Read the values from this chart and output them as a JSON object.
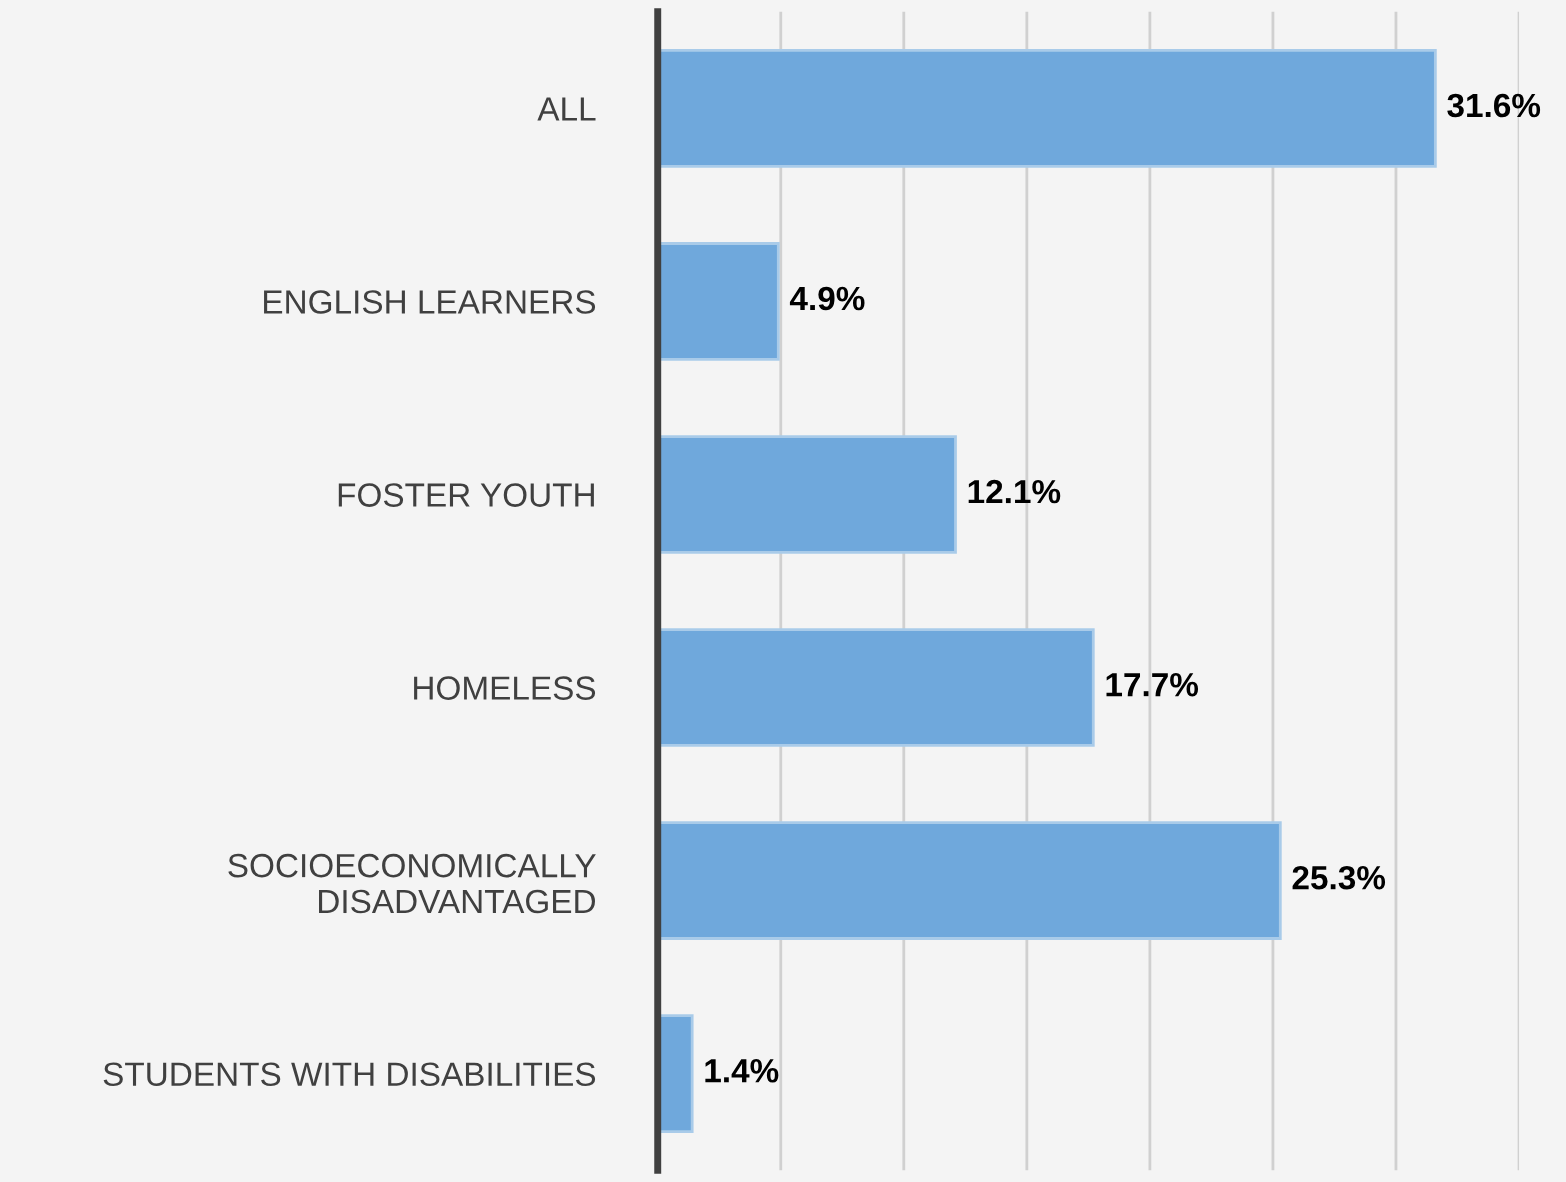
{
  "chart_data": {
    "type": "bar",
    "orientation": "horizontal",
    "categories": [
      "ALL",
      "ENGLISH LEARNERS",
      "FOSTER YOUTH",
      "HOMELESS",
      "SOCIOECONOMICALLY\nDISADVANTAGED",
      "STUDENTS WITH DISABILITIES"
    ],
    "values": [
      31.6,
      4.9,
      12.1,
      17.7,
      25.3,
      1.4
    ],
    "value_labels": [
      "31.6%",
      "4.9%",
      "12.1%",
      "17.7%",
      "25.3%",
      "1.4%"
    ],
    "color": "#6fa8dc",
    "xlim": [
      0,
      35
    ],
    "xticks": [
      0,
      5,
      10,
      15,
      20,
      25,
      30,
      35
    ],
    "tick_labels": "y",
    "grid": "x"
  }
}
